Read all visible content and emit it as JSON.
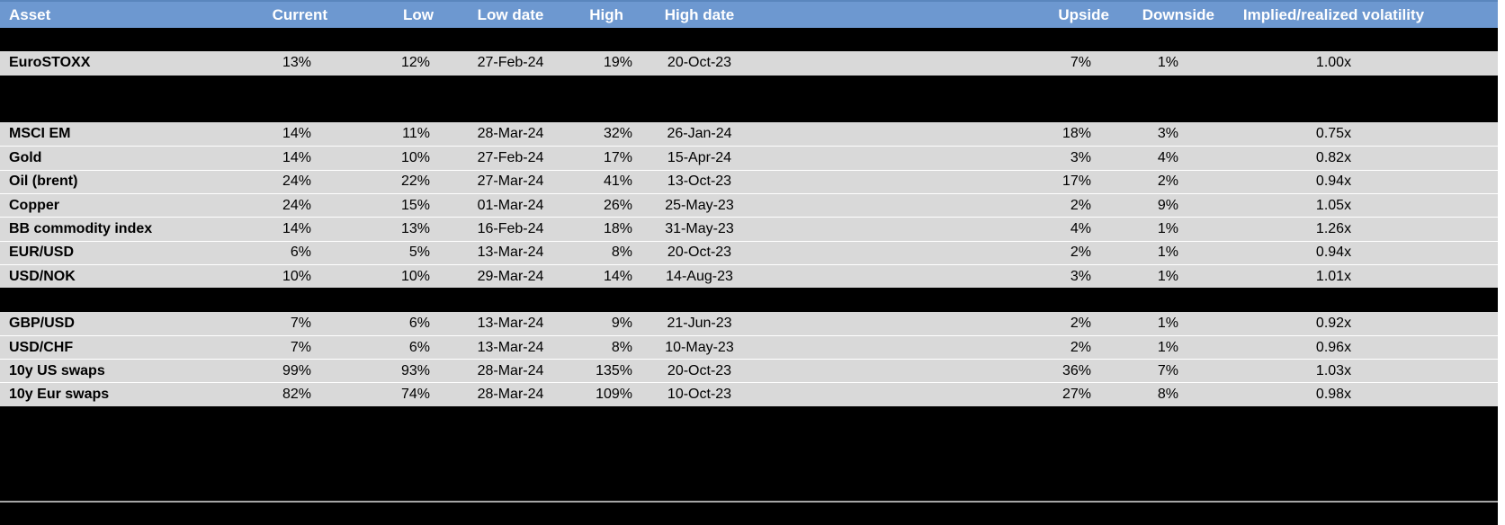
{
  "header": {
    "columns": {
      "asset": "Asset",
      "current": "Current",
      "low": "Low",
      "low_date": "Low date",
      "high": "High",
      "high_date": "High date",
      "chart": "",
      "upside": "Upside",
      "downside": "Downside",
      "implied_realized": "Implied/realized volatility"
    }
  },
  "colors": {
    "header_blue": "#6d98d0",
    "row_gray": "#d9d9d9",
    "hidden_row_black": "#000000",
    "whisker_blue": "#6190cc",
    "box_blue": "#7da7dd",
    "marker_dark_red": "#a81313",
    "separator_gray": "#a6a6a6",
    "header_text": "#ffffff"
  },
  "rows": [
    {
      "type": "hidden",
      "plot": {
        "box_start": 0.167,
        "box_end": 0.412,
        "marker": 0.13
      }
    },
    {
      "type": "data",
      "asset": "EuroSTOXX",
      "current": "13%",
      "low": "12%",
      "low_date": "27-Feb-24",
      "high": "19%",
      "high_date": "20-Oct-23",
      "upside": "7%",
      "downside": "1%",
      "implied_realized": "1.00x",
      "plot": {
        "box_start": 0.132,
        "box_end": 0.441,
        "marker": 0.093
      }
    },
    {
      "type": "hidden",
      "plot": {
        "box_start": 0.343,
        "box_end": 0.583,
        "marker": 0.534
      }
    },
    {
      "type": "hidden",
      "plot": {
        "box_start": 0.353,
        "box_end": 0.623,
        "marker": 0.485
      }
    },
    {
      "type": "data",
      "asset": "MSCI EM",
      "current": "14%",
      "low": "11%",
      "low_date": "28-Mar-24",
      "high": "32%",
      "high_date": "26-Jan-24",
      "upside": "18%",
      "downside": "3%",
      "implied_realized": "0.75x",
      "plot": {
        "box_start": 0.206,
        "box_end": 0.289,
        "marker": 0.118
      }
    },
    {
      "type": "data",
      "asset": "Gold",
      "current": "14%",
      "low": "10%",
      "low_date": "27-Feb-24",
      "high": "17%",
      "high_date": "15-Apr-24",
      "upside": "3%",
      "downside": "4%",
      "implied_realized": "0.82x",
      "plot": {
        "box_start": 0.26,
        "box_end": 0.534,
        "marker": 0.574
      }
    },
    {
      "type": "data",
      "asset": "Oil (brent)",
      "current": "24%",
      "low": "22%",
      "low_date": "27-Mar-24",
      "high": "41%",
      "high_date": "13-Oct-23",
      "upside": "17%",
      "downside": "2%",
      "implied_realized": "0.94x",
      "plot": {
        "box_start": 0.265,
        "box_end": 0.608,
        "marker": 0.083
      }
    },
    {
      "type": "data",
      "asset": "Copper",
      "current": "24%",
      "low": "15%",
      "low_date": "01-Mar-24",
      "high": "26%",
      "high_date": "25-May-23",
      "upside": "2%",
      "downside": "9%",
      "implied_realized": "1.05x",
      "plot": {
        "box_start": 0.221,
        "box_end": 0.662,
        "marker": 0.828
      }
    },
    {
      "type": "data",
      "asset": "BB commodity index",
      "current": "14%",
      "low": "13%",
      "low_date": "16-Feb-24",
      "high": "18%",
      "high_date": "31-May-23",
      "upside": "4%",
      "downside": "1%",
      "implied_realized": "1.26x",
      "plot": {
        "box_start": 0.132,
        "box_end": 0.559,
        "marker": 0.118
      }
    },
    {
      "type": "data",
      "asset": "EUR/USD",
      "current": "6%",
      "low": "5%",
      "low_date": "13-Mar-24",
      "high": "8%",
      "high_date": "20-Oct-23",
      "upside": "2%",
      "downside": "1%",
      "implied_realized": "0.94x",
      "plot": {
        "box_start": 0.417,
        "box_end": 0.711,
        "marker": 0.245
      }
    },
    {
      "type": "data",
      "asset": "USD/NOK",
      "current": "10%",
      "low": "10%",
      "low_date": "29-Mar-24",
      "high": "14%",
      "high_date": "14-Aug-23",
      "upside": "3%",
      "downside": "1%",
      "implied_realized": "1.01x",
      "plot": {
        "box_start": 0.412,
        "box_end": 0.76,
        "marker": 0.191
      }
    },
    {
      "type": "hidden",
      "plot": {
        "box_start": 0.304,
        "box_end": 0.681,
        "marker": 0.534
      }
    },
    {
      "type": "data",
      "asset": "GBP/USD",
      "current": "7%",
      "low": "6%",
      "low_date": "13-Mar-24",
      "high": "9%",
      "high_date": "21-Jun-23",
      "upside": "2%",
      "downside": "1%",
      "implied_realized": "0.92x",
      "plot": {
        "box_start": 0.412,
        "box_end": 0.784,
        "marker": 0.279
      }
    },
    {
      "type": "data",
      "asset": "USD/CHF",
      "current": "7%",
      "low": "6%",
      "low_date": "13-Mar-24",
      "high": "8%",
      "high_date": "10-May-23",
      "upside": "2%",
      "downside": "1%",
      "implied_realized": "0.96x",
      "plot": {
        "box_start": 0.314,
        "box_end": 0.657,
        "marker": 0.26
      }
    },
    {
      "type": "data",
      "asset": "10y US swaps",
      "current": "99%",
      "low": "93%",
      "low_date": "28-Mar-24",
      "high": "135%",
      "high_date": "20-Oct-23",
      "upside": "36%",
      "downside": "7%",
      "implied_realized": "1.03x",
      "plot": {
        "box_start": 0.289,
        "box_end": 0.583,
        "marker": 0.157
      }
    },
    {
      "type": "data",
      "asset": "10y Eur swaps",
      "current": "82%",
      "low": "74%",
      "low_date": "28-Mar-24",
      "high": "109%",
      "high_date": "10-Oct-23",
      "upside": "27%",
      "downside": "8%",
      "implied_realized": "0.98x",
      "plot": {
        "box_start": 0.294,
        "box_end": 0.696,
        "marker": 0.221
      }
    },
    {
      "type": "hidden",
      "plot": {
        "box_start": 0.245,
        "box_end": 0.431,
        "marker": 0.245
      }
    },
    {
      "type": "hidden",
      "plot": {
        "box_start": 0.181,
        "box_end": 0.466,
        "marker": 0.221
      }
    },
    {
      "type": "hidden",
      "plot": {
        "box_start": 0.245,
        "box_end": 0.495,
        "marker": 0.343
      }
    },
    {
      "type": "hidden",
      "plot": {
        "box_start": 0.343,
        "box_end": 0.549,
        "marker": 0.49
      }
    }
  ],
  "chart_data": {
    "type": "table",
    "title": "Implied volatility ranges by asset (whisker = low-high range, diamond = current)",
    "legend_position": "none",
    "columns": [
      "Asset",
      "Current",
      "Low",
      "Low date",
      "High",
      "High date",
      "Upside",
      "Downside",
      "Implied/realized volatility"
    ],
    "series": [
      {
        "name": "EuroSTOXX",
        "current": 13,
        "low": 12,
        "high": 19,
        "upside": 7,
        "downside": 1,
        "implied_realized": 1.0
      },
      {
        "name": "MSCI EM",
        "current": 14,
        "low": 11,
        "high": 32,
        "upside": 18,
        "downside": 3,
        "implied_realized": 0.75
      },
      {
        "name": "Gold",
        "current": 14,
        "low": 10,
        "high": 17,
        "upside": 3,
        "downside": 4,
        "implied_realized": 0.82
      },
      {
        "name": "Oil (brent)",
        "current": 24,
        "low": 22,
        "high": 41,
        "upside": 17,
        "downside": 2,
        "implied_realized": 0.94
      },
      {
        "name": "Copper",
        "current": 24,
        "low": 15,
        "high": 26,
        "upside": 2,
        "downside": 9,
        "implied_realized": 1.05
      },
      {
        "name": "BB commodity index",
        "current": 14,
        "low": 13,
        "high": 18,
        "upside": 4,
        "downside": 1,
        "implied_realized": 1.26
      },
      {
        "name": "EUR/USD",
        "current": 6,
        "low": 5,
        "high": 8,
        "upside": 2,
        "downside": 1,
        "implied_realized": 0.94
      },
      {
        "name": "USD/NOK",
        "current": 10,
        "low": 10,
        "high": 14,
        "upside": 3,
        "downside": 1,
        "implied_realized": 1.01
      },
      {
        "name": "GBP/USD",
        "current": 7,
        "low": 6,
        "high": 9,
        "upside": 2,
        "downside": 1,
        "implied_realized": 0.92
      },
      {
        "name": "USD/CHF",
        "current": 7,
        "low": 6,
        "high": 8,
        "upside": 2,
        "downside": 1,
        "implied_realized": 0.96
      },
      {
        "name": "10y US swaps",
        "current": 99,
        "low": 93,
        "high": 135,
        "upside": 36,
        "downside": 7,
        "implied_realized": 1.03
      },
      {
        "name": "10y Eur swaps",
        "current": 82,
        "low": 74,
        "high": 109,
        "upside": 27,
        "downside": 8,
        "implied_realized": 0.98
      }
    ]
  }
}
